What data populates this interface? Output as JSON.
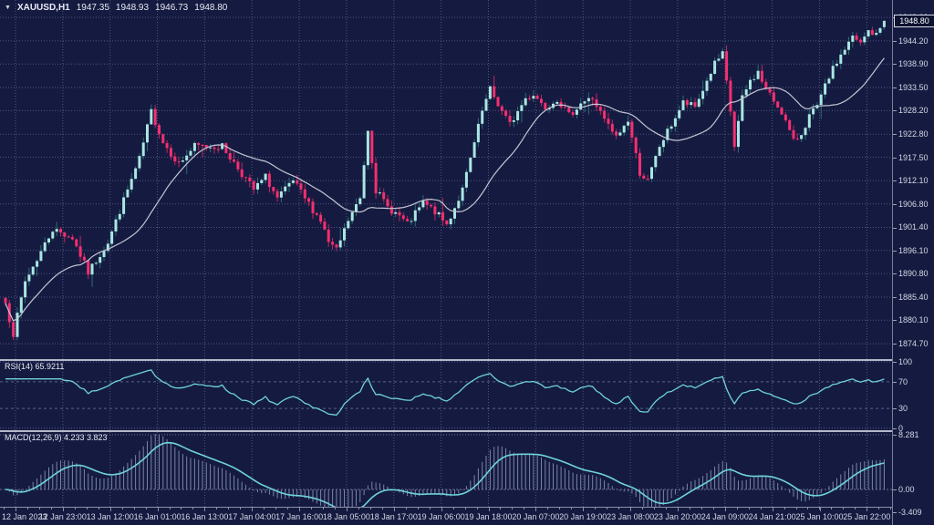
{
  "header": {
    "symbol": "XAUUSD,H1",
    "open": "1947.35",
    "high": "1948.93",
    "low": "1946.73",
    "close": "1948.80"
  },
  "price_axis": {
    "current_price": "1948.80"
  },
  "rsi_panel": {
    "label": "RSI(14) 65.9211"
  },
  "macd_panel": {
    "label": "MACD(12,26,9) 4.233 3.823"
  },
  "chart_data": {
    "type": "candlestick",
    "symbol": "XAUUSD",
    "timeframe": "H1",
    "title": "XAUUSD,H1",
    "legend_position": "top-left",
    "grid": true,
    "current_ohlc": {
      "open": 1947.35,
      "high": 1948.93,
      "low": 1946.73,
      "close": 1948.8
    },
    "ylim": [
      1872.0,
      1951.5
    ],
    "price_ticks": [
      1949.6,
      1944.2,
      1938.9,
      1933.5,
      1928.2,
      1922.8,
      1917.5,
      1912.1,
      1906.8,
      1901.4,
      1896.1,
      1890.8,
      1885.4,
      1880.1,
      1874.7
    ],
    "x_tick_labels": [
      "12 Jan 2023",
      "12 Jan 23:00",
      "13 Jan 12:00",
      "16 Jan 01:00",
      "16 Jan 13:00",
      "17 Jan 04:00",
      "17 Jan 16:00",
      "18 Jan 05:00",
      "18 Jan 17:00",
      "19 Jan 06:00",
      "19 Jan 18:00",
      "20 Jan 07:00",
      "20 Jan 19:00",
      "23 Jan 08:00",
      "23 Jan 20:00",
      "24 Jan 09:00",
      "24 Jan 21:00",
      "25 Jan 10:00",
      "25 Jan 22:00"
    ],
    "num_candles": 224,
    "close_path_anchors": [
      [
        0,
        1884
      ],
      [
        2,
        1877
      ],
      [
        5,
        1889
      ],
      [
        12,
        1901
      ],
      [
        17,
        1899
      ],
      [
        21,
        1891
      ],
      [
        26,
        1898
      ],
      [
        31,
        1910
      ],
      [
        34,
        1917
      ],
      [
        37,
        1928
      ],
      [
        40,
        1921
      ],
      [
        44,
        1916
      ],
      [
        48,
        1920
      ],
      [
        55,
        1920
      ],
      [
        59,
        1915
      ],
      [
        63,
        1910
      ],
      [
        66,
        1913
      ],
      [
        69,
        1908
      ],
      [
        73,
        1912
      ],
      [
        76,
        1908
      ],
      [
        80,
        1903
      ],
      [
        82,
        1898
      ],
      [
        84,
        1896
      ],
      [
        87,
        1903
      ],
      [
        90,
        1908
      ],
      [
        92,
        1924
      ],
      [
        94,
        1910
      ],
      [
        97,
        1906
      ],
      [
        100,
        1904
      ],
      [
        102,
        1902
      ],
      [
        106,
        1907
      ],
      [
        109,
        1905
      ],
      [
        112,
        1902
      ],
      [
        116,
        1910
      ],
      [
        118,
        1917
      ],
      [
        121,
        1928
      ],
      [
        123,
        1933
      ],
      [
        126,
        1928
      ],
      [
        128,
        1925
      ],
      [
        132,
        1931
      ],
      [
        134,
        1932
      ],
      [
        137,
        1929
      ],
      [
        140,
        1931
      ],
      [
        143,
        1927
      ],
      [
        146,
        1930
      ],
      [
        149,
        1931
      ],
      [
        152,
        1926
      ],
      [
        155,
        1922
      ],
      [
        158,
        1926
      ],
      [
        161,
        1914
      ],
      [
        163,
        1912
      ],
      [
        166,
        1920
      ],
      [
        169,
        1925
      ],
      [
        172,
        1930
      ],
      [
        175,
        1929
      ],
      [
        178,
        1935
      ],
      [
        180,
        1939
      ],
      [
        182,
        1941
      ],
      [
        184,
        1928
      ],
      [
        185,
        1920
      ],
      [
        187,
        1931
      ],
      [
        189,
        1935
      ],
      [
        191,
        1937
      ],
      [
        193,
        1933
      ],
      [
        197,
        1928
      ],
      [
        200,
        1921
      ],
      [
        202,
        1923
      ],
      [
        204,
        1927
      ],
      [
        206,
        1929
      ],
      [
        209,
        1936
      ],
      [
        212,
        1941
      ],
      [
        215,
        1945
      ],
      [
        217,
        1943.5
      ],
      [
        219,
        1946.5
      ],
      [
        221,
        1945.5
      ],
      [
        223,
        1948.8
      ]
    ],
    "indicators": {
      "ma": {
        "type": "SMA",
        "period": 20
      },
      "rsi": {
        "period": 14,
        "last_value": 65.9211,
        "levels": [
          100,
          70,
          30,
          0
        ],
        "range": [
          0,
          100
        ]
      },
      "macd": {
        "fast": 12,
        "slow": 26,
        "signal": 9,
        "last_main": 4.233,
        "last_signal": 3.823,
        "levels": [
          8.281,
          0,
          -3.409
        ]
      }
    },
    "colors": {
      "background": "#151b40",
      "grid": "#4e567f",
      "bull": "#a9e7e2",
      "bull_wick": "#2f6a74",
      "bear": "#f52f70",
      "bear_wick": "#c22560",
      "ma_line": "#c4c6d4",
      "indicator_line": "#6fd3da",
      "histogram": "#7b84a8",
      "text": "#dfe2ee",
      "separator": "#b4b8cb",
      "badge_bg": "#0d1230"
    }
  }
}
